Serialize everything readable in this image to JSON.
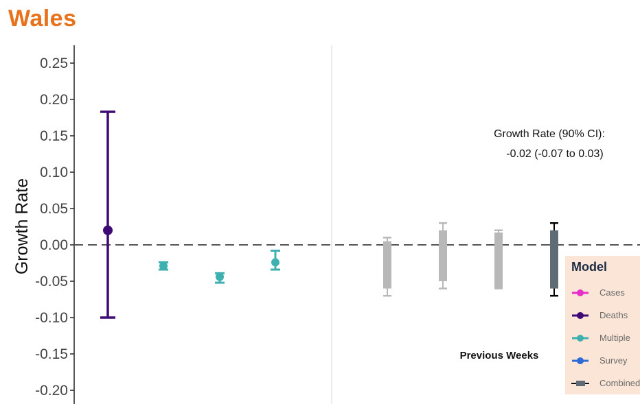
{
  "page_title": "Wales",
  "chart_data": {
    "type": "scatter",
    "title": "Wales",
    "ylabel": "Growth Rate",
    "ylim": [
      -0.2,
      0.26
    ],
    "yticks": [
      "0.25",
      "0.20",
      "0.15",
      "0.10",
      "0.05",
      "0.00",
      "-0.05",
      "-0.10",
      "-0.15",
      "-0.20"
    ],
    "reference_line": 0,
    "grid": false,
    "annotation": {
      "line1": "Growth Rate (90% CI):",
      "line2": "-0.02 (-0.07 to 0.03)"
    },
    "previous_weeks_label": "Previous Weeks",
    "current": [
      {
        "model": "Deaths",
        "value": 0.02,
        "lower": -0.1,
        "upper": 0.183,
        "color": "#3f0a75"
      },
      {
        "model": "Multiple",
        "value": -0.029,
        "lower": -0.034,
        "upper": -0.024,
        "color": "#3fb0b0"
      },
      {
        "model": "Multiple",
        "value": -0.044,
        "lower": -0.052,
        "upper": -0.039,
        "color": "#3fb0b0"
      },
      {
        "model": "Multiple",
        "value": -0.024,
        "lower": -0.034,
        "upper": -0.008,
        "color": "#3fb0b0"
      }
    ],
    "previous_weeks": [
      {
        "lower": -0.07,
        "upper": 0.01,
        "bar_low": -0.06,
        "bar_high": 0.005,
        "color": "#b8b8b8"
      },
      {
        "lower": -0.06,
        "upper": 0.03,
        "bar_low": -0.05,
        "bar_high": 0.02,
        "color": "#b8b8b8"
      },
      {
        "lower": -0.06,
        "upper": 0.02,
        "bar_low": -0.06,
        "bar_high": 0.017,
        "color": "#b8b8b8"
      },
      {
        "lower": -0.07,
        "upper": 0.03,
        "bar_low": -0.06,
        "bar_high": 0.02,
        "color": "#5f6b75",
        "whisker_color": "#000000"
      }
    ],
    "legend": {
      "title": "Model",
      "placement": "bottom-right",
      "items": [
        {
          "label": "Cases",
          "color": "#e82ec9",
          "key": "dot"
        },
        {
          "label": "Deaths",
          "color": "#3f0a75",
          "key": "dot"
        },
        {
          "label": "Multiple",
          "color": "#3fb0b0",
          "key": "dot"
        },
        {
          "label": "Survey",
          "color": "#2f6bd6",
          "key": "dot"
        },
        {
          "label": "Combined",
          "color": "#5f6b75",
          "key": "bar"
        }
      ]
    }
  }
}
